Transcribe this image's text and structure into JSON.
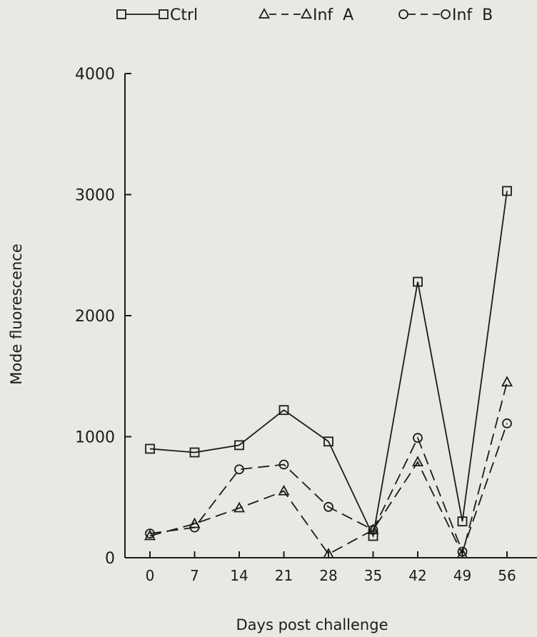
{
  "chart_data": {
    "type": "line",
    "xlabel": "Days post challenge",
    "ylabel": "Mode fluorescence",
    "categories": [
      "0",
      "7",
      "14",
      "21",
      "28",
      "35",
      "42",
      "49",
      "56"
    ],
    "x": [
      0,
      7,
      14,
      21,
      28,
      35,
      42,
      49,
      56
    ],
    "ylim": [
      0,
      4000
    ],
    "yticks": [
      0,
      1000,
      2000,
      3000,
      4000
    ],
    "ytick_labels": [
      "0",
      "1000",
      "2000",
      "3000",
      "4000"
    ],
    "grid": false,
    "legend_position": "top",
    "series": [
      {
        "name": "Ctrl",
        "marker": "square",
        "line_style": "solid",
        "color": "#1b1b1b",
        "values": [
          900,
          870,
          930,
          1220,
          960,
          180,
          2280,
          300,
          3030
        ]
      },
      {
        "name": "Inf  A",
        "marker": "triangle",
        "line_style": "dashed",
        "color": "#1b1b1b",
        "values": [
          180,
          280,
          410,
          550,
          30,
          230,
          790,
          30,
          1450
        ]
      },
      {
        "name": "Inf  B",
        "marker": "circle",
        "line_style": "dashed",
        "color": "#1b1b1b",
        "values": [
          200,
          250,
          730,
          770,
          420,
          230,
          990,
          50,
          1110
        ]
      }
    ]
  }
}
